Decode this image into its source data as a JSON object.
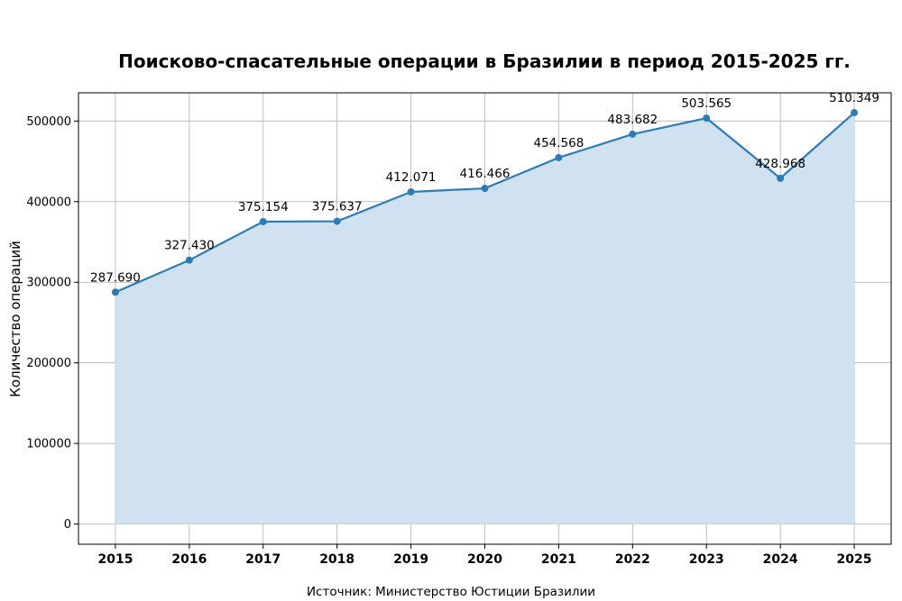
{
  "chart_data": {
    "type": "area",
    "title": "Поисково-спасательные операции в Бразилии в период 2015-2025 гг.",
    "xlabel": "",
    "ylabel": "Количество операций",
    "source": "Источник: Министерство Юстиции Бразилии",
    "categories": [
      "2015",
      "2016",
      "2017",
      "2018",
      "2019",
      "2020",
      "2021",
      "2022",
      "2023",
      "2024",
      "2025"
    ],
    "values": [
      287690,
      327430,
      375154,
      375637,
      412071,
      416466,
      454568,
      483682,
      503565,
      428968,
      510349
    ],
    "data_labels": [
      "287.690",
      "327.430",
      "375.154",
      "375.637",
      "412.071",
      "416.466",
      "454.568",
      "483.682",
      "503.565",
      "428.968",
      "510.349"
    ],
    "yticks": [
      0,
      100000,
      200000,
      300000,
      400000,
      500000
    ],
    "ytick_labels": [
      "0",
      "100000",
      "200000",
      "300000",
      "400000",
      "500000"
    ],
    "ylim": [
      -25000,
      535000
    ],
    "xlim": [
      2014.5,
      2025.5
    ],
    "grid": true,
    "legend": "none",
    "colors": {
      "line": "#2f7bb6",
      "fill": "#d0e2f0",
      "grid": "#b0b0b0",
      "axes": "#000000"
    }
  }
}
